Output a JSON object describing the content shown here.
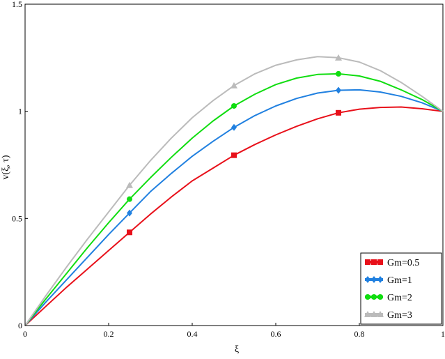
{
  "chart_data": {
    "type": "line",
    "xlabel": "ξ",
    "ylabel": "v(ξ, τ)",
    "xlim": [
      0,
      1
    ],
    "ylim": [
      0,
      1.5
    ],
    "x_ticks": [
      "0",
      "0.2",
      "0.4",
      "0.6",
      "0.8",
      "1"
    ],
    "y_ticks": [
      "0",
      "0.5",
      "1",
      "1.5"
    ],
    "grid": false,
    "legend_position": "bottom-right",
    "x": [
      0,
      0.05,
      0.1,
      0.15,
      0.2,
      0.25,
      0.3,
      0.35,
      0.4,
      0.45,
      0.5,
      0.55,
      0.6,
      0.65,
      0.7,
      0.75,
      0.8,
      0.85,
      0.9,
      0.95,
      1.0
    ],
    "series": [
      {
        "name": "Gm=0.5",
        "color": "#e8101a",
        "marker": "square",
        "values": [
          0,
          0.09,
          0.18,
          0.265,
          0.35,
          0.435,
          0.52,
          0.6,
          0.675,
          0.735,
          0.795,
          0.845,
          0.89,
          0.93,
          0.965,
          0.993,
          1.01,
          1.018,
          1.02,
          1.012,
          1.0
        ],
        "marker_x": [
          0.25,
          0.5,
          0.75
        ],
        "marker_y": [
          0.435,
          0.795,
          0.993
        ]
      },
      {
        "name": "Gm=1",
        "color": "#2080e0",
        "marker": "diamond",
        "values": [
          0,
          0.11,
          0.215,
          0.32,
          0.425,
          0.525,
          0.625,
          0.71,
          0.79,
          0.86,
          0.925,
          0.98,
          1.025,
          1.06,
          1.085,
          1.098,
          1.1,
          1.09,
          1.07,
          1.04,
          1.0
        ],
        "marker_x": [
          0.25,
          0.5,
          0.75
        ],
        "marker_y": [
          0.525,
          0.925,
          1.098
        ]
      },
      {
        "name": "Gm=2",
        "color": "#10dd10",
        "marker": "circle",
        "values": [
          0,
          0.125,
          0.245,
          0.365,
          0.48,
          0.59,
          0.69,
          0.785,
          0.875,
          0.955,
          1.025,
          1.08,
          1.125,
          1.155,
          1.172,
          1.175,
          1.165,
          1.14,
          1.1,
          1.055,
          1.0
        ],
        "marker_x": [
          0.25,
          0.5,
          0.75
        ],
        "marker_y": [
          0.59,
          1.025,
          1.175
        ]
      },
      {
        "name": "Gm=3",
        "color": "#bbbbbb",
        "marker": "triangle",
        "values": [
          0,
          0.14,
          0.275,
          0.405,
          0.53,
          0.655,
          0.77,
          0.875,
          0.97,
          1.05,
          1.12,
          1.175,
          1.215,
          1.24,
          1.255,
          1.25,
          1.23,
          1.19,
          1.135,
          1.07,
          1.0
        ],
        "marker_x": [
          0.25,
          0.5,
          0.75
        ],
        "marker_y": [
          0.655,
          1.12,
          1.25
        ]
      }
    ]
  }
}
